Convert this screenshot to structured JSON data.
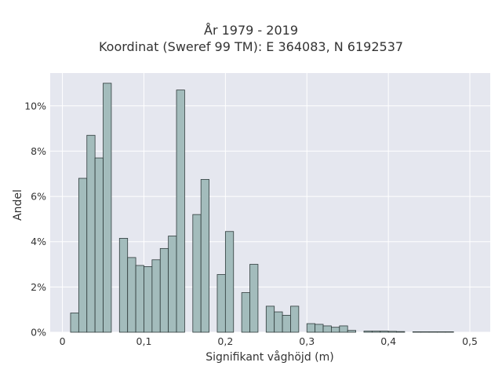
{
  "chart_data": {
    "type": "bar",
    "title": "År 1979 - 2019",
    "subtitle": "Koordinat (Sweref 99 TM): E 364083, N 6192537",
    "xlabel": "Signifikant våghöjd (m)",
    "ylabel": "Andel",
    "xlim": [
      -0.015,
      0.525
    ],
    "ylim": [
      0,
      0.1145
    ],
    "x_ticks": [
      0,
      0.1,
      0.2,
      0.3,
      0.4,
      0.5
    ],
    "x_tick_labels": [
      "0",
      "0,1",
      "0,2",
      "0,3",
      "0,4",
      "0,5"
    ],
    "y_ticks": [
      0,
      0.02,
      0.04,
      0.06,
      0.08,
      0.1
    ],
    "y_tick_labels": [
      "0%",
      "2%",
      "4%",
      "6%",
      "8%",
      "10%"
    ],
    "bin_width": 0.01,
    "bin_starts": [
      0.01,
      0.02,
      0.03,
      0.04,
      0.05,
      0.07,
      0.08,
      0.09,
      0.1,
      0.11,
      0.12,
      0.13,
      0.14,
      0.16,
      0.17,
      0.19,
      0.2,
      0.22,
      0.23,
      0.25,
      0.26,
      0.27,
      0.28,
      0.3,
      0.31,
      0.32,
      0.33,
      0.34,
      0.35,
      0.37,
      0.38,
      0.39,
      0.4,
      0.41,
      0.43,
      0.44,
      0.45,
      0.46,
      0.47
    ],
    "values": [
      0.0085,
      0.068,
      0.087,
      0.077,
      0.11,
      0.0415,
      0.033,
      0.0295,
      0.029,
      0.032,
      0.037,
      0.0425,
      0.107,
      0.052,
      0.0675,
      0.0255,
      0.0445,
      0.0175,
      0.03,
      0.0115,
      0.009,
      0.0075,
      0.0115,
      0.0038,
      0.0035,
      0.0028,
      0.0022,
      0.0028,
      0.0008,
      0.0005,
      0.0005,
      0.0005,
      0.0004,
      0.0003,
      0.0002,
      0.0002,
      0.0002,
      0.0002,
      0.0002
    ],
    "grid": true,
    "legend": "none",
    "colors": {
      "plot_background": "#e5e7ef",
      "grid": "#ffffff",
      "bar_fill": "#a3bcbc",
      "bar_edge": "#2f3b3b"
    }
  }
}
